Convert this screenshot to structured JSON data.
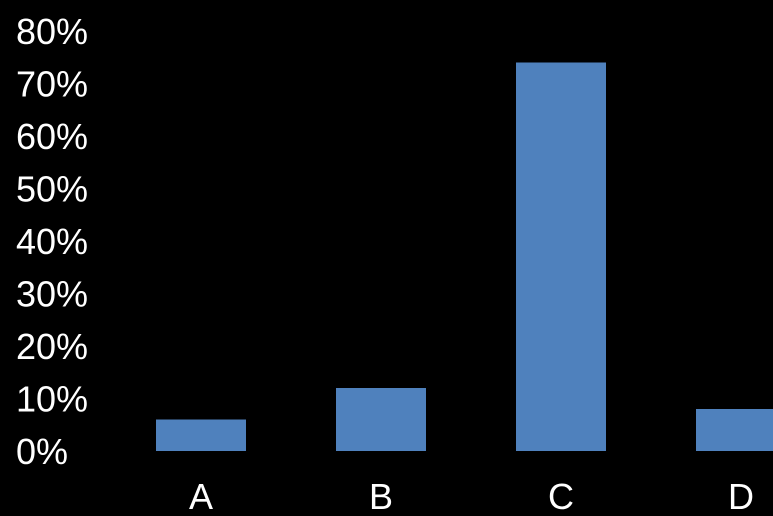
{
  "chart_data": {
    "type": "bar",
    "categories": [
      "A",
      "B",
      "C",
      "D"
    ],
    "values": [
      6,
      12,
      74,
      8
    ],
    "yticks": [
      "0%",
      "10%",
      "20%",
      "30%",
      "40%",
      "50%",
      "60%",
      "70%",
      "80%"
    ],
    "ylim": [
      0,
      80
    ],
    "title": "",
    "xlabel": "",
    "ylabel": "",
    "grid": false,
    "legend": "none",
    "colors": {
      "bar": "#4f81bd",
      "background": "#000000",
      "text": "#ffffff"
    }
  }
}
